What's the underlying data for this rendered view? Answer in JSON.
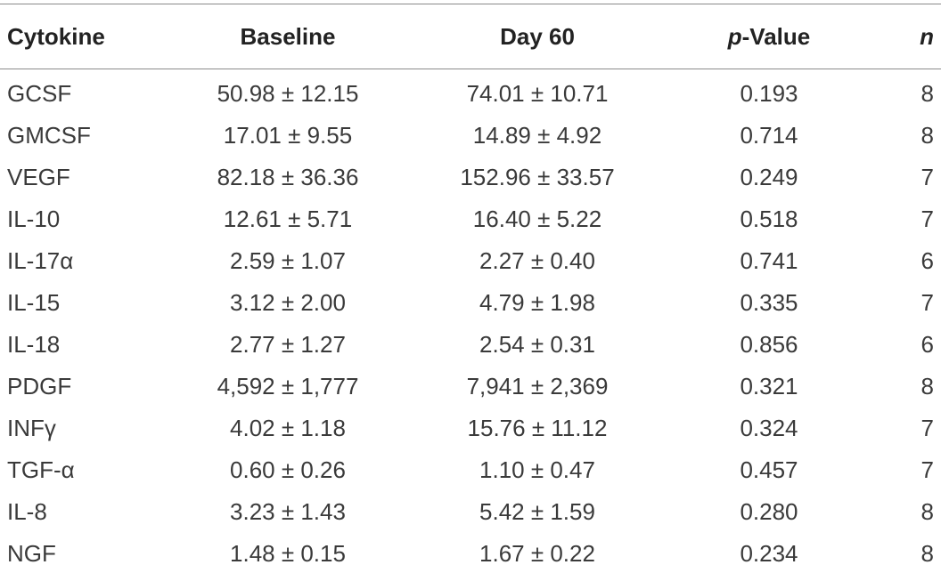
{
  "table": {
    "headers": {
      "cytokine": "Cytokine",
      "baseline": "Baseline",
      "day60": "Day 60",
      "pvalue_italic": "p",
      "pvalue_rest": "-Value",
      "n": "n"
    },
    "rows": [
      {
        "cytokine": "GCSF",
        "baseline": "50.98 ± 12.15",
        "day60": "74.01 ± 10.71",
        "pvalue": "0.193",
        "n": "8"
      },
      {
        "cytokine": "GMCSF",
        "baseline": "17.01 ± 9.55",
        "day60": "14.89 ± 4.92",
        "pvalue": "0.714",
        "n": "8"
      },
      {
        "cytokine": "VEGF",
        "baseline": "82.18 ± 36.36",
        "day60": "152.96 ± 33.57",
        "pvalue": "0.249",
        "n": "7"
      },
      {
        "cytokine": "IL-10",
        "baseline": "12.61 ± 5.71",
        "day60": "16.40 ± 5.22",
        "pvalue": "0.518",
        "n": "7"
      },
      {
        "cytokine": "IL-17α",
        "baseline": "2.59 ± 1.07",
        "day60": "2.27 ± 0.40",
        "pvalue": "0.741",
        "n": "6"
      },
      {
        "cytokine": "IL-15",
        "baseline": "3.12 ± 2.00",
        "day60": "4.79 ± 1.98",
        "pvalue": "0.335",
        "n": "7"
      },
      {
        "cytokine": "IL-18",
        "baseline": "2.77 ± 1.27",
        "day60": "2.54 ± 0.31",
        "pvalue": "0.856",
        "n": "6"
      },
      {
        "cytokine": "PDGF",
        "baseline": "4,592 ± 1,777",
        "day60": "7,941 ± 2,369",
        "pvalue": "0.321",
        "n": "8"
      },
      {
        "cytokine": "INFγ",
        "baseline": "4.02 ± 1.18",
        "day60": "15.76 ± 11.12",
        "pvalue": "0.324",
        "n": "7"
      },
      {
        "cytokine": "TGF-α",
        "baseline": "0.60 ± 0.26",
        "day60": "1.10 ± 0.47",
        "pvalue": "0.457",
        "n": "7"
      },
      {
        "cytokine": "IL-8",
        "baseline": "3.23 ± 1.43",
        "day60": "5.42 ± 1.59",
        "pvalue": "0.280",
        "n": "8"
      },
      {
        "cytokine": "NGF",
        "baseline": "1.48 ± 0.15",
        "day60": "1.67 ± 0.22",
        "pvalue": "0.234",
        "n": "8"
      }
    ]
  }
}
